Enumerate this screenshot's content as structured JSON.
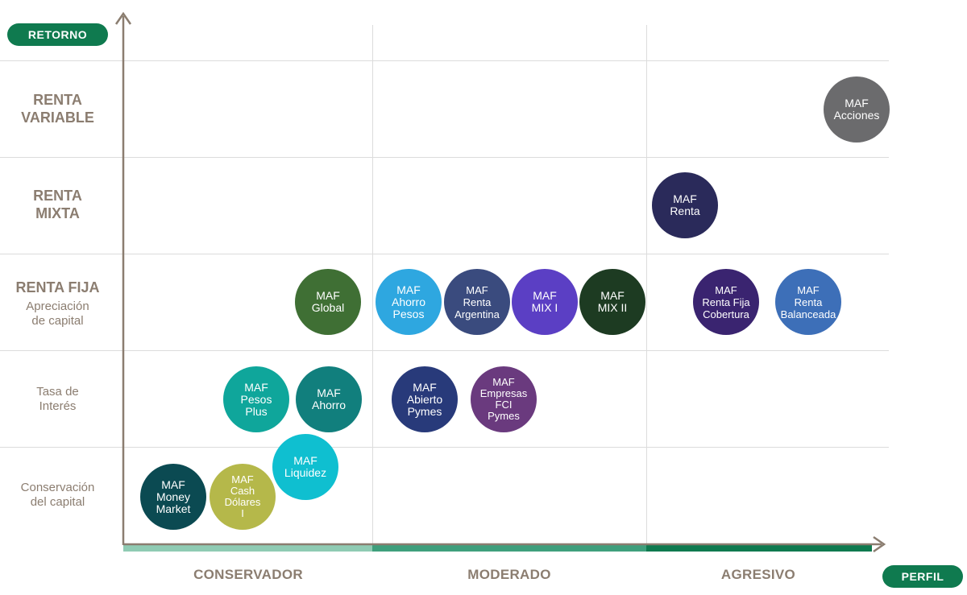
{
  "y_axis_label": "RETORNO",
  "x_axis_label": "PERFIL",
  "rows": [
    {
      "title": "RENTA VARIABLE",
      "lines": [
        "RENTA",
        "VARIABLE"
      ]
    },
    {
      "title": "RENTA MIXTA",
      "lines": [
        "RENTA",
        "MIXTA"
      ]
    },
    {
      "title": "RENTA FIJA",
      "sub": [
        "Apreciación",
        "de capital"
      ]
    },
    {
      "sub": [
        "Tasa de",
        "Interés"
      ]
    },
    {
      "sub": [
        "Conservación",
        "del capital"
      ]
    }
  ],
  "columns": [
    "CONSERVADOR",
    "MODERADO",
    "AGRESIVO"
  ],
  "colors": {
    "accent": "#0f7a4f",
    "bar_conservador": "#8fcbb3",
    "bar_moderado": "#3f9f7c",
    "bar_agresivo": "#0f7a4f",
    "axis": "#8b7d70"
  },
  "funds": [
    {
      "lines": [
        "MAF",
        "Acciones"
      ],
      "color": "#6b6b6d"
    },
    {
      "lines": [
        "MAF",
        "Renta"
      ],
      "color": "#2a2a5a"
    },
    {
      "lines": [
        "MAF",
        "Global"
      ],
      "color": "#3f6f34"
    },
    {
      "lines": [
        "MAF",
        "Ahorro",
        "Pesos"
      ],
      "color": "#2ea7e0"
    },
    {
      "lines": [
        "MAF",
        "Renta",
        "Argentina"
      ],
      "color": "#3a4b7e"
    },
    {
      "lines": [
        "MAF",
        "MIX I"
      ],
      "color": "#5b3fc4"
    },
    {
      "lines": [
        "MAF",
        "MIX II"
      ],
      "color": "#1d3b22"
    },
    {
      "lines": [
        "MAF",
        "Renta Fija",
        "Cobertura"
      ],
      "color": "#3a2470"
    },
    {
      "lines": [
        "MAF",
        "Renta",
        "Balanceada"
      ],
      "color": "#3d6fb8"
    },
    {
      "lines": [
        "MAF",
        "Pesos",
        "Plus"
      ],
      "color": "#0fa69b"
    },
    {
      "lines": [
        "MAF",
        "Ahorro"
      ],
      "color": "#117f7d"
    },
    {
      "lines": [
        "MAF",
        "Abierto",
        "Pymes"
      ],
      "color": "#283a7a"
    },
    {
      "lines": [
        "MAF",
        "Empresas",
        "FCI",
        "Pymes"
      ],
      "color": "#6a3a7e"
    },
    {
      "lines": [
        "MAF",
        "Liquidez"
      ],
      "color": "#0fbfd0"
    },
    {
      "lines": [
        "MAF",
        "Money",
        "Market"
      ],
      "color": "#0b4a52"
    },
    {
      "lines": [
        "MAF",
        "Cash",
        "Dólares",
        "I"
      ],
      "color": "#b5b84a"
    }
  ]
}
